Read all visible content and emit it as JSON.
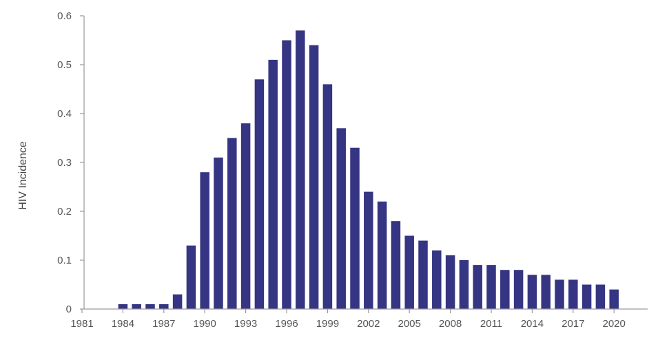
{
  "colors": {
    "bar": "#353583",
    "axis": "#9a9a9a",
    "text": "#555555"
  },
  "chart_data": {
    "type": "bar",
    "title": "",
    "xlabel": "",
    "ylabel": "HIV Incidence",
    "ylim": [
      0,
      0.6
    ],
    "yticks": [
      "0",
      "0.1",
      "0.2",
      "0.3",
      "0.4",
      "0.5",
      "0.6"
    ],
    "xticks": [
      "1981",
      "1984",
      "1987",
      "1990",
      "1993",
      "1996",
      "1999",
      "2002",
      "2005",
      "2008",
      "2011",
      "2014",
      "2017",
      "2020"
    ],
    "grid": false,
    "legend": "none",
    "x": [
      1981,
      1982,
      1983,
      1984,
      1985,
      1986,
      1987,
      1988,
      1989,
      1990,
      1991,
      1992,
      1993,
      1994,
      1995,
      1996,
      1997,
      1998,
      1999,
      2000,
      2001,
      2002,
      2003,
      2004,
      2005,
      2006,
      2007,
      2008,
      2009,
      2010,
      2011,
      2012,
      2013,
      2014,
      2015,
      2016,
      2017,
      2018,
      2019,
      2020
    ],
    "values": [
      0,
      0,
      0,
      0.01,
      0.01,
      0.01,
      0.01,
      0.03,
      0.13,
      0.28,
      0.31,
      0.35,
      0.38,
      0.47,
      0.51,
      0.55,
      0.57,
      0.54,
      0.46,
      0.37,
      0.33,
      0.24,
      0.22,
      0.18,
      0.15,
      0.14,
      0.12,
      0.11,
      0.1,
      0.09,
      0.09,
      0.08,
      0.08,
      0.07,
      0.07,
      0.06,
      0.06,
      0.05,
      0.05,
      0.04
    ]
  }
}
